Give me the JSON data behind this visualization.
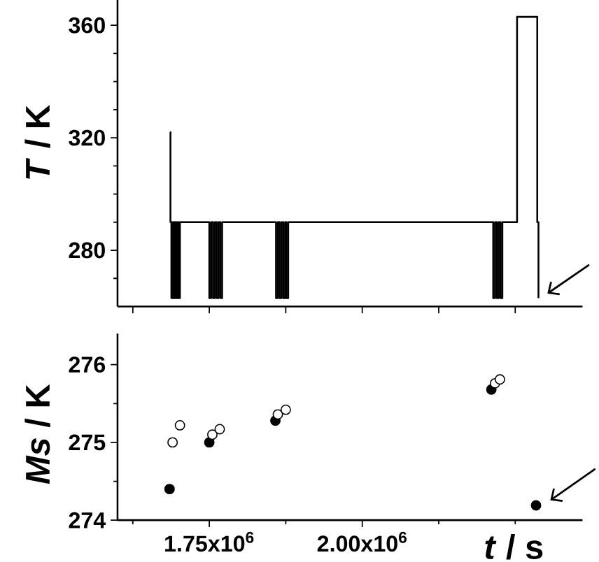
{
  "chart_data": [
    {
      "type": "step",
      "ylabel": "*T* / K",
      "tick_labels": "y",
      "xlim": [
        1600000,
        2360000
      ],
      "ylim": [
        260,
        369
      ],
      "xticks": [
        1625000,
        1750000,
        1875000,
        2000000,
        2125000,
        2250000
      ],
      "yticks": [
        {
          "value": 270,
          "label": null
        },
        280,
        {
          "value": 290,
          "label": null
        },
        {
          "value": 300,
          "label": null
        },
        {
          "value": 310,
          "label": null
        },
        320,
        {
          "value": 330,
          "label": null
        },
        {
          "value": 340,
          "label": null
        },
        {
          "value": 350,
          "label": null
        },
        360
      ],
      "x": [
        1686000,
        1686500,
        1688000,
        1690000,
        1692000,
        1694000,
        1696000,
        1698000,
        1700000,
        1702000,
        1750000,
        1753000,
        1756000,
        1759000,
        1762000,
        1765000,
        1768000,
        1771000,
        1859000,
        1862000,
        1865000,
        1868000,
        1871000,
        1874000,
        1876000,
        1879000,
        2214000,
        2217000,
        2220000,
        2223000,
        2226000,
        2229000,
        2253000,
        2286000,
        2288000
      ],
      "series": [
        {
          "color": "#000000",
          "values": [
            322,
            290,
            263,
            290,
            263,
            290,
            263,
            290,
            263,
            290,
            263,
            290,
            263,
            290,
            263,
            290,
            263,
            290,
            263,
            290,
            263,
            290,
            263,
            290,
            263,
            290,
            263,
            290,
            263,
            290,
            263,
            290,
            363,
            290,
            263
          ]
        }
      ]
    },
    {
      "type": "scatter",
      "ylabel": "*Ms* / K",
      "xlabel": "*t* / s",
      "marker": "circle",
      "xlim": [
        1600000,
        2360000
      ],
      "ylim": [
        274,
        276.4
      ],
      "xticks": [
        {
          "value": 1625000,
          "label": null
        },
        {
          "value": 1750000,
          "label": "1.75x10$^{6}$"
        },
        {
          "value": 1875000,
          "label": null
        },
        {
          "value": 2000000,
          "label": "2.00x10$^{6}$"
        },
        {
          "value": 2125000,
          "label": null
        },
        {
          "value": 2250000,
          "label": null
        }
      ],
      "yticks": [
        274,
        {
          "value": 274.5,
          "label": null
        },
        275,
        {
          "value": 275.5,
          "label": null
        },
        276
      ],
      "series": [
        {
          "color": "#000000",
          "x": [
            1685000,
            1750000,
            1858000,
            2211000,
            2284000
          ],
          "values": [
            274.4,
            275.0,
            275.28,
            275.68,
            274.19
          ]
        },
        {
          "color": "#ffffff",
          "x": [
            1690000,
            1702000,
            1755000,
            1767000,
            1862000,
            1875000,
            2217000,
            2225000
          ],
          "values": [
            275.0,
            275.22,
            275.1,
            275.17,
            275.36,
            275.42,
            275.76,
            275.81
          ]
        }
      ]
    }
  ]
}
